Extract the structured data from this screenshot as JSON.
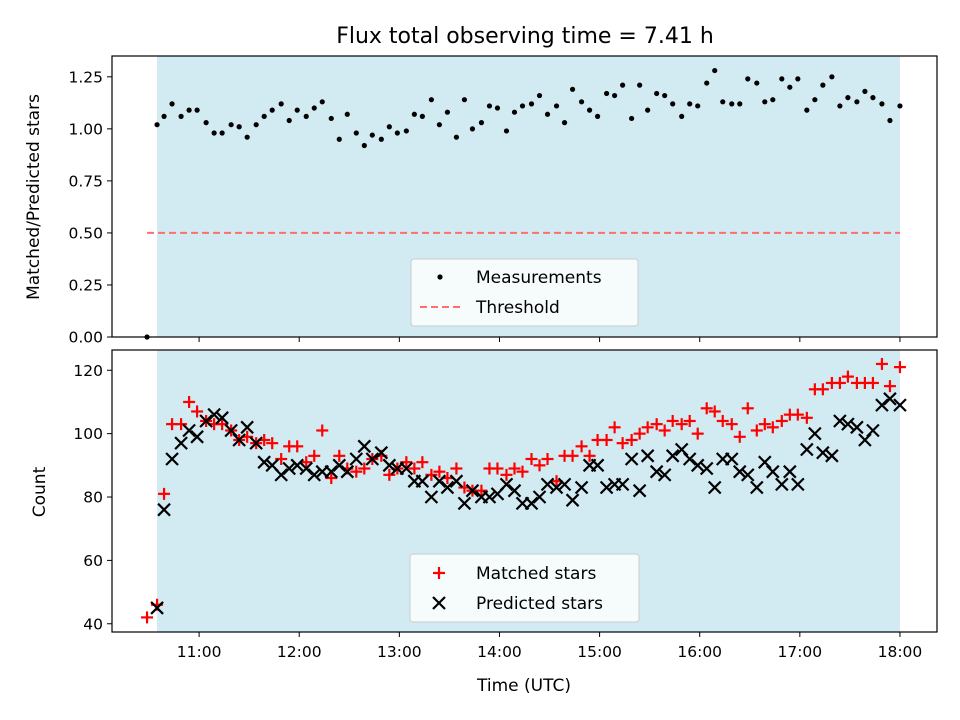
{
  "chart_data": [
    {
      "type": "scatter",
      "title": "Flux total observing time = 7.41 h",
      "xlabel": "",
      "ylabel": "Matched/Predicted stars",
      "ylim": [
        0,
        1.35
      ],
      "yticks": [
        0.0,
        0.25,
        0.5,
        0.75,
        1.0,
        1.25
      ],
      "ytick_labels": [
        "0.00",
        "0.25",
        "0.50",
        "0.75",
        "1.00",
        "1.25"
      ],
      "x_unit": "hours UTC",
      "xlim": [
        10.13,
        18.37
      ],
      "shaded_range": [
        10.58,
        18.0
      ],
      "shade_color": "#add8e6",
      "grid": false,
      "legend_position": "lower-center",
      "series": [
        {
          "name": "Measurements",
          "marker": "dot",
          "color": "#000000",
          "x": [
            10.48,
            10.58,
            10.65,
            10.73,
            10.82,
            10.9,
            10.98,
            11.07,
            11.15,
            11.23,
            11.32,
            11.4,
            11.48,
            11.57,
            11.65,
            11.73,
            11.82,
            11.9,
            11.98,
            12.07,
            12.15,
            12.23,
            12.32,
            12.4,
            12.48,
            12.57,
            12.65,
            12.73,
            12.82,
            12.9,
            12.98,
            13.07,
            13.15,
            13.23,
            13.32,
            13.4,
            13.48,
            13.57,
            13.65,
            13.73,
            13.82,
            13.9,
            13.98,
            14.07,
            14.15,
            14.23,
            14.32,
            14.4,
            14.48,
            14.57,
            14.65,
            14.73,
            14.82,
            14.9,
            14.98,
            15.07,
            15.15,
            15.23,
            15.32,
            15.4,
            15.48,
            15.57,
            15.65,
            15.73,
            15.82,
            15.9,
            15.98,
            16.07,
            16.15,
            16.23,
            16.32,
            16.4,
            16.48,
            16.57,
            16.65,
            16.73,
            16.82,
            16.9,
            16.98,
            17.07,
            17.15,
            17.23,
            17.32,
            17.4,
            17.48,
            17.57,
            17.65,
            17.73,
            17.82,
            17.9,
            18.0
          ],
          "y": [
            0.0,
            1.02,
            1.06,
            1.12,
            1.06,
            1.09,
            1.09,
            1.03,
            0.98,
            0.98,
            1.02,
            1.01,
            0.96,
            1.02,
            1.06,
            1.09,
            1.12,
            1.04,
            1.09,
            1.06,
            1.1,
            1.13,
            1.05,
            0.95,
            1.07,
            0.98,
            0.92,
            0.97,
            0.95,
            1.01,
            0.98,
            0.99,
            1.07,
            1.06,
            1.14,
            1.02,
            1.08,
            0.96,
            1.14,
            1.0,
            1.03,
            1.11,
            1.1,
            0.99,
            1.08,
            1.11,
            1.12,
            1.16,
            1.07,
            1.11,
            1.03,
            1.19,
            1.13,
            1.09,
            1.06,
            1.17,
            1.16,
            1.21,
            1.05,
            1.21,
            1.09,
            1.17,
            1.16,
            1.12,
            1.06,
            1.12,
            1.11,
            1.22,
            1.28,
            1.13,
            1.12,
            1.12,
            1.24,
            1.22,
            1.13,
            1.14,
            1.24,
            1.2,
            1.24,
            1.09,
            1.14,
            1.21,
            1.25,
            1.11,
            1.15,
            1.13,
            1.18,
            1.15,
            1.12,
            1.04,
            1.11
          ]
        },
        {
          "name": "Threshold",
          "marker": "dashed-line",
          "color": "#ff6e6e",
          "x": [
            10.48,
            18.0
          ],
          "y": [
            0.5,
            0.5
          ]
        }
      ],
      "legend": [
        "Measurements",
        "Threshold"
      ]
    },
    {
      "type": "scatter",
      "title": "",
      "xlabel": "Time (UTC)",
      "ylabel": "Count",
      "ylim": [
        37.4,
        126.4
      ],
      "yticks": [
        40,
        60,
        80,
        100,
        120
      ],
      "ytick_labels": [
        "40",
        "60",
        "80",
        "100",
        "120"
      ],
      "x_unit": "hours UTC",
      "xlim": [
        10.13,
        18.37
      ],
      "xticks": [
        11,
        12,
        13,
        14,
        15,
        16,
        17,
        18
      ],
      "xtick_labels": [
        "11:00",
        "12:00",
        "13:00",
        "14:00",
        "15:00",
        "16:00",
        "17:00",
        "18:00"
      ],
      "shaded_range": [
        10.58,
        18.0
      ],
      "shade_color": "#add8e6",
      "grid": false,
      "legend_position": "lower-center",
      "series": [
        {
          "name": "Matched stars",
          "marker": "plus",
          "color": "#ff0000",
          "x": [
            10.48,
            10.58,
            10.65,
            10.73,
            10.82,
            10.9,
            10.98,
            11.07,
            11.15,
            11.23,
            11.32,
            11.4,
            11.48,
            11.57,
            11.65,
            11.73,
            11.82,
            11.9,
            11.98,
            12.07,
            12.15,
            12.23,
            12.32,
            12.4,
            12.48,
            12.57,
            12.65,
            12.73,
            12.82,
            12.9,
            12.98,
            13.07,
            13.15,
            13.23,
            13.32,
            13.4,
            13.48,
            13.57,
            13.65,
            13.73,
            13.82,
            13.9,
            13.98,
            14.07,
            14.15,
            14.23,
            14.32,
            14.4,
            14.48,
            14.57,
            14.65,
            14.73,
            14.82,
            14.9,
            14.98,
            15.07,
            15.15,
            15.23,
            15.32,
            15.4,
            15.48,
            15.57,
            15.65,
            15.73,
            15.82,
            15.9,
            15.98,
            16.07,
            16.15,
            16.23,
            16.32,
            16.4,
            16.48,
            16.57,
            16.65,
            16.73,
            16.82,
            16.9,
            16.98,
            17.07,
            17.15,
            17.23,
            17.32,
            17.4,
            17.48,
            17.57,
            17.65,
            17.73,
            17.82,
            17.9,
            18.0
          ],
          "y": [
            42,
            46,
            81,
            103,
            103,
            110,
            107,
            104,
            103,
            103,
            101,
            98,
            99,
            97,
            98,
            97,
            92,
            96,
            96,
            91,
            93,
            101,
            86,
            93,
            89,
            88,
            89,
            92,
            93,
            87,
            89,
            91,
            89,
            91,
            87,
            88,
            86,
            89,
            83,
            82,
            82,
            89,
            89,
            87,
            89,
            88,
            92,
            90,
            92,
            85,
            93,
            93,
            96,
            93,
            98,
            98,
            102,
            97,
            98,
            100,
            102,
            103,
            101,
            104,
            103,
            104,
            100,
            108,
            107,
            104,
            103,
            99,
            108,
            101,
            103,
            102,
            104,
            106,
            106,
            105,
            114,
            114,
            116,
            116,
            118,
            116,
            116,
            116,
            122,
            115,
            121
          ]
        },
        {
          "name": "Predicted stars",
          "marker": "x",
          "color": "#000000",
          "x": [
            10.58,
            10.65,
            10.73,
            10.82,
            10.9,
            10.98,
            11.07,
            11.15,
            11.23,
            11.32,
            11.4,
            11.48,
            11.57,
            11.65,
            11.73,
            11.82,
            11.9,
            11.98,
            12.07,
            12.15,
            12.23,
            12.32,
            12.4,
            12.48,
            12.57,
            12.65,
            12.73,
            12.82,
            12.9,
            12.98,
            13.07,
            13.15,
            13.23,
            13.32,
            13.4,
            13.48,
            13.57,
            13.65,
            13.73,
            13.82,
            13.9,
            13.98,
            14.07,
            14.15,
            14.23,
            14.32,
            14.4,
            14.48,
            14.57,
            14.65,
            14.73,
            14.82,
            14.9,
            14.98,
            15.07,
            15.15,
            15.23,
            15.32,
            15.4,
            15.48,
            15.57,
            15.65,
            15.73,
            15.82,
            15.9,
            15.98,
            16.07,
            16.15,
            16.23,
            16.32,
            16.4,
            16.48,
            16.57,
            16.65,
            16.73,
            16.82,
            16.9,
            16.98,
            17.07,
            17.15,
            17.23,
            17.32,
            17.4,
            17.48,
            17.57,
            17.65,
            17.73,
            17.82,
            17.9,
            18.0
          ],
          "y": [
            45,
            76,
            92,
            97,
            101,
            99,
            104,
            106,
            105,
            101,
            98,
            102,
            97,
            91,
            90,
            87,
            89,
            90,
            89,
            87,
            88,
            88,
            90,
            88,
            92,
            96,
            92,
            94,
            90,
            89,
            89,
            85,
            85,
            80,
            85,
            83,
            85,
            78,
            82,
            80,
            80,
            81,
            84,
            82,
            78,
            78,
            80,
            84,
            83,
            84,
            79,
            83,
            90,
            90,
            83,
            84,
            84,
            92,
            82,
            93,
            88,
            87,
            93,
            95,
            92,
            90,
            89,
            83,
            92,
            92,
            88,
            87,
            83,
            91,
            88,
            84,
            88,
            84,
            95,
            100,
            94,
            93,
            104,
            103,
            102,
            98,
            101,
            109,
            111,
            109
          ]
        }
      ],
      "legend": [
        "Matched stars",
        "Predicted stars"
      ]
    }
  ]
}
